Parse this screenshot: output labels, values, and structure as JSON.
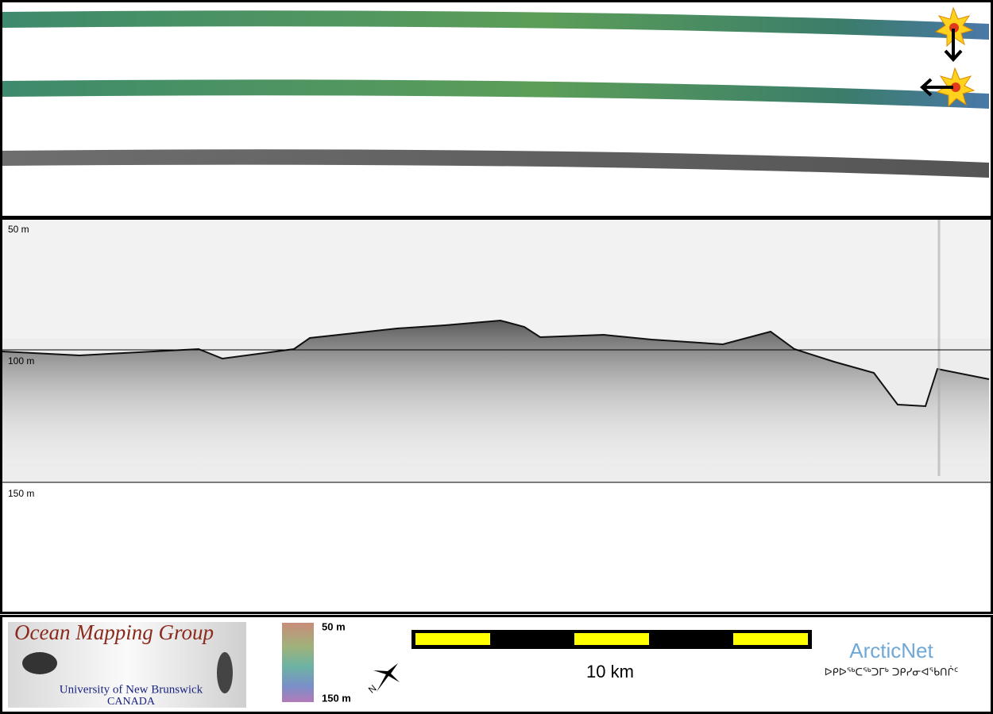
{
  "profile": {
    "depth_labels": [
      "50 m",
      "100 m",
      "150 m"
    ]
  },
  "logo": {
    "title": "Ocean Mapping Group",
    "line1": "University of New Brunswick",
    "line2": "CANADA"
  },
  "colorbar": {
    "top_label": "50 m",
    "bottom_label": "150 m"
  },
  "scalebar": {
    "label": "10 km"
  },
  "partner": {
    "name": "ArcticNet",
    "syllabics": "ᐅᑭᐅᖅᑕᖅᑐᒥᒃ ᑐᑭᓯᓂᐊᖃᑎᒌᑦ"
  }
}
